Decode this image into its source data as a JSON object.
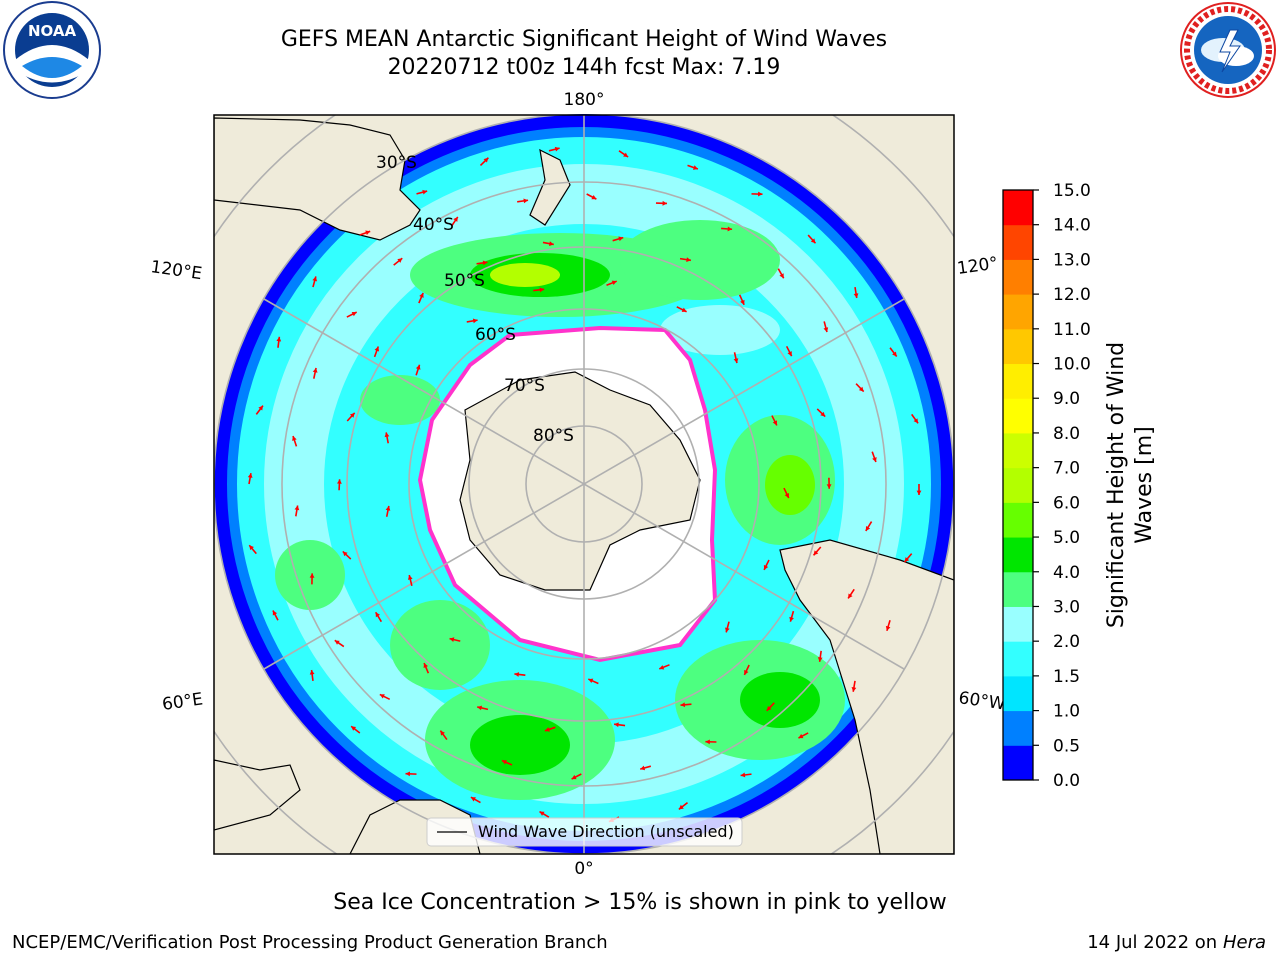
{
  "header": {
    "title_line1": "GEFS MEAN Antarctic Significant Height of Wind Waves",
    "title_line2": "20220712 t00z 144h fcst   Max: 7.19"
  },
  "logos": {
    "left": "noaa-logo",
    "right": "nws-logo"
  },
  "map": {
    "projection": "south-polar-stereographic",
    "longitude_labels": {
      "top": "180°",
      "bottom": "0°",
      "left_upper": "120°E",
      "left_lower": "60°E",
      "right_upper": "120°",
      "right_lower": "60°W"
    },
    "latitude_labels": [
      "30°S",
      "40°S",
      "50°S",
      "60°S",
      "70°S",
      "80°S"
    ],
    "legend_label": "Wind Wave Direction (unscaled)",
    "colors": {
      "land": "#efebda",
      "ice_zone": "#ffffff",
      "ice_edge": "#ff33cc",
      "arrow": "#ff0000",
      "grid": "#b0b0b0"
    }
  },
  "colorbar": {
    "label": "Significant Height of Wind Waves [m]",
    "label_line1": "Significant Height of Wind",
    "label_line2": "Waves [m]",
    "ticks": [
      "0.0",
      "0.5",
      "1.0",
      "1.5",
      "2.0",
      "3.0",
      "4.0",
      "5.0",
      "6.0",
      "7.0",
      "8.0",
      "9.0",
      "10.0",
      "11.0",
      "12.0",
      "13.0",
      "14.0",
      "15.0"
    ],
    "colors": [
      "#0000ff",
      "#0080ff",
      "#00e5ff",
      "#33ffff",
      "#99ffff",
      "#4dff80",
      "#00e600",
      "#66ff00",
      "#b3ff00",
      "#ccff00",
      "#ffff00",
      "#ffee00",
      "#ffc800",
      "#ffa500",
      "#ff7f00",
      "#ff4500",
      "#ff0000"
    ]
  },
  "footer": {
    "note": "Sea Ice Concentration > 15% is shown in pink to yellow",
    "left": "NCEP/EMC/Verification Post Processing Product Generation Branch",
    "right_date": "14 Jul 2022 on ",
    "right_host": "Hera"
  }
}
